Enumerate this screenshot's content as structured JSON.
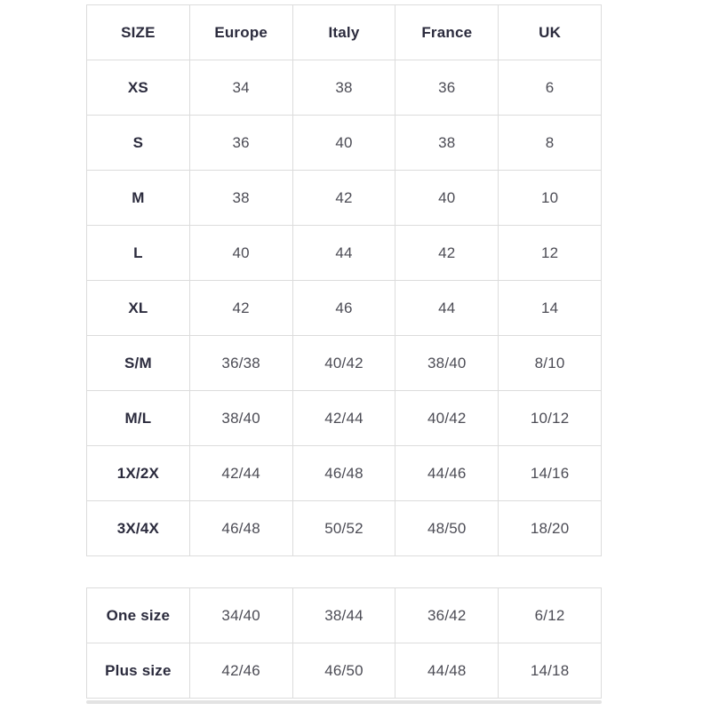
{
  "colors": {
    "background": "#ffffff",
    "border": "#dcdcdc",
    "header_text": "#2b2b3d",
    "cell_text": "#4c4c55",
    "scrollbar_track": "#e3e3e3"
  },
  "size_chart": {
    "columns": [
      "SIZE",
      "Europe",
      "Italy",
      "France",
      "UK"
    ],
    "rows": [
      {
        "label": "XS",
        "values": [
          "34",
          "38",
          "36",
          "6"
        ]
      },
      {
        "label": "S",
        "values": [
          "36",
          "40",
          "38",
          "8"
        ]
      },
      {
        "label": "M",
        "values": [
          "38",
          "42",
          "40",
          "10"
        ]
      },
      {
        "label": "L",
        "values": [
          "40",
          "44",
          "42",
          "12"
        ]
      },
      {
        "label": "XL",
        "values": [
          "42",
          "46",
          "44",
          "14"
        ]
      },
      {
        "label": "S/M",
        "values": [
          "36/38",
          "40/42",
          "38/40",
          "8/10"
        ]
      },
      {
        "label": "M/L",
        "values": [
          "38/40",
          "42/44",
          "40/42",
          "10/12"
        ]
      },
      {
        "label": "1X/2X",
        "values": [
          "42/44",
          "46/48",
          "44/46",
          "14/16"
        ]
      },
      {
        "label": "3X/4X",
        "values": [
          "46/48",
          "50/52",
          "48/50",
          "18/20"
        ]
      }
    ]
  },
  "special_sizes": {
    "rows": [
      {
        "label": "One size",
        "values": [
          "34/40",
          "38/44",
          "36/42",
          "6/12"
        ]
      },
      {
        "label": "Plus size",
        "values": [
          "42/46",
          "46/50",
          "44/48",
          "14/18"
        ]
      }
    ]
  }
}
